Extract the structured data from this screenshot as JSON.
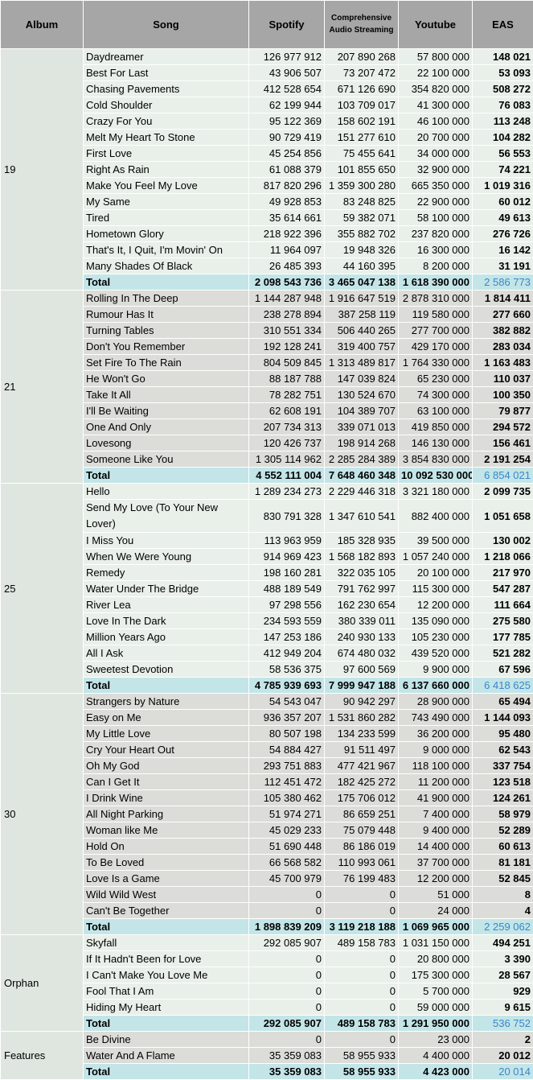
{
  "headers": {
    "album": "Album",
    "song": "Song",
    "spotify": "Spotify",
    "cas_line1": "Comprehensive",
    "cas_line2": "Audio Streaming",
    "youtube": "Youtube",
    "eas": "EAS"
  },
  "total_label": "Total",
  "albums": [
    {
      "name": "19",
      "rows": [
        {
          "song": "Daydreamer",
          "spotify": "126 977 912",
          "cas": "207 890 268",
          "youtube": "57 800 000",
          "eas": "148 021"
        },
        {
          "song": "Best For Last",
          "spotify": "43 906 507",
          "cas": "73 207 472",
          "youtube": "22 100 000",
          "eas": "53 093"
        },
        {
          "song": "Chasing Pavements",
          "spotify": "412 528 654",
          "cas": "671 126 690",
          "youtube": "354 820 000",
          "eas": "508 272"
        },
        {
          "song": "Cold Shoulder",
          "spotify": "62 199 944",
          "cas": "103 709 017",
          "youtube": "41 300 000",
          "eas": "76 083"
        },
        {
          "song": "Crazy For You",
          "spotify": "95 122 369",
          "cas": "158 602 191",
          "youtube": "46 100 000",
          "eas": "113 248"
        },
        {
          "song": "Melt My Heart To Stone",
          "spotify": "90 729 419",
          "cas": "151 277 610",
          "youtube": "20 700 000",
          "eas": "104 282"
        },
        {
          "song": "First Love",
          "spotify": "45 254 856",
          "cas": "75 455 641",
          "youtube": "34 000 000",
          "eas": "56 553"
        },
        {
          "song": "Right As Rain",
          "spotify": "61 088 379",
          "cas": "101 855 650",
          "youtube": "32 900 000",
          "eas": "74 221"
        },
        {
          "song": "Make You Feel My Love",
          "spotify": "817 820 296",
          "cas": "1 359 300 280",
          "youtube": "665 350 000",
          "eas": "1 019 316"
        },
        {
          "song": "My Same",
          "spotify": "49 928 853",
          "cas": "83 248 825",
          "youtube": "22 900 000",
          "eas": "60 012"
        },
        {
          "song": "Tired",
          "spotify": "35 614 661",
          "cas": "59 382 071",
          "youtube": "58 100 000",
          "eas": "49 613"
        },
        {
          "song": "Hometown Glory",
          "spotify": "218 922 396",
          "cas": "355 882 702",
          "youtube": "237 820 000",
          "eas": "276 726"
        },
        {
          "song": "That's It, I Quit, I'm Movin' On",
          "spotify": "11 964 097",
          "cas": "19 948 326",
          "youtube": "16 300 000",
          "eas": "16 142"
        },
        {
          "song": "Many Shades Of Black",
          "spotify": "26 485 393",
          "cas": "44 160 395",
          "youtube": "8 200 000",
          "eas": "31 191"
        }
      ],
      "total": {
        "spotify": "2 098 543 736",
        "cas": "3 465 047 138",
        "youtube": "1 618 390 000",
        "eas": "2 586 773"
      }
    },
    {
      "name": "21",
      "rows": [
        {
          "song": "Rolling In The Deep",
          "spotify": "1 144 287 948",
          "cas": "1 916 647 519",
          "youtube": "2 878 310 000",
          "eas": "1 814 411"
        },
        {
          "song": "Rumour Has It",
          "spotify": "238 278 894",
          "cas": "387 258 119",
          "youtube": "119 580 000",
          "eas": "277 660"
        },
        {
          "song": "Turning Tables",
          "spotify": "310 551 334",
          "cas": "506 440 265",
          "youtube": "277 700 000",
          "eas": "382 882"
        },
        {
          "song": "Don't You Remember",
          "spotify": "192 128 241",
          "cas": "319 400 757",
          "youtube": "429 170 000",
          "eas": "283 034"
        },
        {
          "song": "Set Fire To The Rain",
          "spotify": "804 509 845",
          "cas": "1 313 489 817",
          "youtube": "1 764 330 000",
          "eas": "1 163 483"
        },
        {
          "song": "He Won't Go",
          "spotify": "88 187 788",
          "cas": "147 039 824",
          "youtube": "65 230 000",
          "eas": "110 037"
        },
        {
          "song": "Take It All",
          "spotify": "78 282 751",
          "cas": "130 524 670",
          "youtube": "74 300 000",
          "eas": "100 350"
        },
        {
          "song": "I'll Be Waiting",
          "spotify": "62 608 191",
          "cas": "104 389 707",
          "youtube": "63 100 000",
          "eas": "79 877"
        },
        {
          "song": "One And Only",
          "spotify": "207 734 313",
          "cas": "339 071 013",
          "youtube": "419 850 000",
          "eas": "294 572"
        },
        {
          "song": "Lovesong",
          "spotify": "120 426 737",
          "cas": "198 914 268",
          "youtube": "146 130 000",
          "eas": "156 461"
        },
        {
          "song": "Someone Like You",
          "spotify": "1 305 114 962",
          "cas": "2 285 284 389",
          "youtube": "3 854 830 000",
          "eas": "2 191 254"
        }
      ],
      "total": {
        "spotify": "4 552 111 004",
        "cas": "7 648 460 348",
        "youtube": "10 092 530 000",
        "eas": "6 854 021"
      }
    },
    {
      "name": "25",
      "rows": [
        {
          "song": "Hello",
          "spotify": "1 289 234 273",
          "cas": "2 229 446 318",
          "youtube": "3 321 180 000",
          "eas": "2 099 735"
        },
        {
          "song": "Send My Love (To Your New Lover)",
          "spotify": "830 791 328",
          "cas": "1 347 610 541",
          "youtube": "882 400 000",
          "eas": "1 051 658",
          "wrap": true
        },
        {
          "song": "I Miss You",
          "spotify": "113 963 959",
          "cas": "185 328 935",
          "youtube": "39 500 000",
          "eas": "130 002"
        },
        {
          "song": "When We Were Young",
          "spotify": "914 969 423",
          "cas": "1 568 182 893",
          "youtube": "1 057 240 000",
          "eas": "1 218 066"
        },
        {
          "song": "Remedy",
          "spotify": "198 160 281",
          "cas": "322 035 105",
          "youtube": "20 100 000",
          "eas": "217 970"
        },
        {
          "song": "Water Under The Bridge",
          "spotify": "488 189 549",
          "cas": "791 762 997",
          "youtube": "115 300 000",
          "eas": "547 287"
        },
        {
          "song": "River Lea",
          "spotify": "97 298 556",
          "cas": "162 230 654",
          "youtube": "12 200 000",
          "eas": "111 664"
        },
        {
          "song": "Love In The Dark",
          "spotify": "234 593 559",
          "cas": "380 339 011",
          "youtube": "135 090 000",
          "eas": "275 580"
        },
        {
          "song": "Million Years Ago",
          "spotify": "147 253 186",
          "cas": "240 930 133",
          "youtube": "105 230 000",
          "eas": "177 785"
        },
        {
          "song": "All I Ask",
          "spotify": "412 949 204",
          "cas": "674 480 032",
          "youtube": "439 520 000",
          "eas": "521 282"
        },
        {
          "song": "Sweetest Devotion",
          "spotify": "58 536 375",
          "cas": "97 600 569",
          "youtube": "9 900 000",
          "eas": "67 596"
        }
      ],
      "total": {
        "spotify": "4 785 939 693",
        "cas": "7 999 947 188",
        "youtube": "6 137 660 000",
        "eas": "6 418 625"
      }
    },
    {
      "name": "30",
      "rows": [
        {
          "song": "Strangers by Nature",
          "spotify": "54 543 047",
          "cas": "90 942 297",
          "youtube": "28 900 000",
          "eas": "65 494"
        },
        {
          "song": "Easy on Me",
          "spotify": "936 357 207",
          "cas": "1 531 860 282",
          "youtube": "743 490 000",
          "eas": "1 144 093"
        },
        {
          "song": "My Little Love",
          "spotify": "80 507 198",
          "cas": "134 233 599",
          "youtube": "36 200 000",
          "eas": "95 480"
        },
        {
          "song": "Cry Your Heart Out",
          "spotify": "54 884 427",
          "cas": "91 511 497",
          "youtube": "9 000 000",
          "eas": "62 543"
        },
        {
          "song": "Oh My God",
          "spotify": "293 751 883",
          "cas": "477 421 967",
          "youtube": "118 100 000",
          "eas": "337 754"
        },
        {
          "song": "Can I Get It",
          "spotify": "112 451 472",
          "cas": "182 425 272",
          "youtube": "11 200 000",
          "eas": "123 518"
        },
        {
          "song": "I Drink Wine",
          "spotify": "105 380 462",
          "cas": "175 706 012",
          "youtube": "41 900 000",
          "eas": "124 261"
        },
        {
          "song": "All Night Parking",
          "spotify": "51 974 271",
          "cas": "86 659 251",
          "youtube": "7 400 000",
          "eas": "58 979"
        },
        {
          "song": "Woman like Me",
          "spotify": "45 029 233",
          "cas": "75 079 448",
          "youtube": "9 400 000",
          "eas": "52 289"
        },
        {
          "song": "Hold On",
          "spotify": "51 690 448",
          "cas": "86 186 019",
          "youtube": "14 400 000",
          "eas": "60 613"
        },
        {
          "song": "To Be Loved",
          "spotify": "66 568 582",
          "cas": "110 993 061",
          "youtube": "37 700 000",
          "eas": "81 181"
        },
        {
          "song": "Love Is a Game",
          "spotify": "45 700 979",
          "cas": "76 199 483",
          "youtube": "12 200 000",
          "eas": "52 845"
        },
        {
          "song": "Wild Wild West",
          "spotify": "0",
          "cas": "0",
          "youtube": "51 000",
          "eas": "8"
        },
        {
          "song": "Can't Be Together",
          "spotify": "0",
          "cas": "0",
          "youtube": "24 000",
          "eas": "4"
        }
      ],
      "total": {
        "spotify": "1 898 839 209",
        "cas": "3 119 218 188",
        "youtube": "1 069 965 000",
        "eas": "2 259 062"
      }
    },
    {
      "name": "Orphan",
      "rows": [
        {
          "song": "Skyfall",
          "spotify": "292 085 907",
          "cas": "489 158 783",
          "youtube": "1 031 150 000",
          "eas": "494 251"
        },
        {
          "song": "If It Hadn't Been for Love",
          "spotify": "0",
          "cas": "0",
          "youtube": "20 800 000",
          "eas": "3 390"
        },
        {
          "song": "I Can't Make You Love Me",
          "spotify": "0",
          "cas": "0",
          "youtube": "175 300 000",
          "eas": "28 567"
        },
        {
          "song": "Fool That I Am",
          "spotify": "0",
          "cas": "0",
          "youtube": "5 700 000",
          "eas": "929"
        },
        {
          "song": "Hiding My Heart",
          "spotify": "0",
          "cas": "0",
          "youtube": "59 000 000",
          "eas": "9 615"
        }
      ],
      "total": {
        "spotify": "292 085 907",
        "cas": "489 158 783",
        "youtube": "1 291 950 000",
        "eas": "536 752"
      }
    },
    {
      "name": "Features",
      "rows": [
        {
          "song": "Be Divine",
          "spotify": "0",
          "cas": "0",
          "youtube": "23 000",
          "eas": "2"
        },
        {
          "song": "Water And A Flame",
          "spotify": "35 359 083",
          "cas": "58 955 933",
          "youtube": "4 400 000",
          "eas": "20 012"
        }
      ],
      "total": {
        "spotify": "35 359 083",
        "cas": "58 955 933",
        "youtube": "4 423 000",
        "eas": "20 014"
      }
    }
  ]
}
